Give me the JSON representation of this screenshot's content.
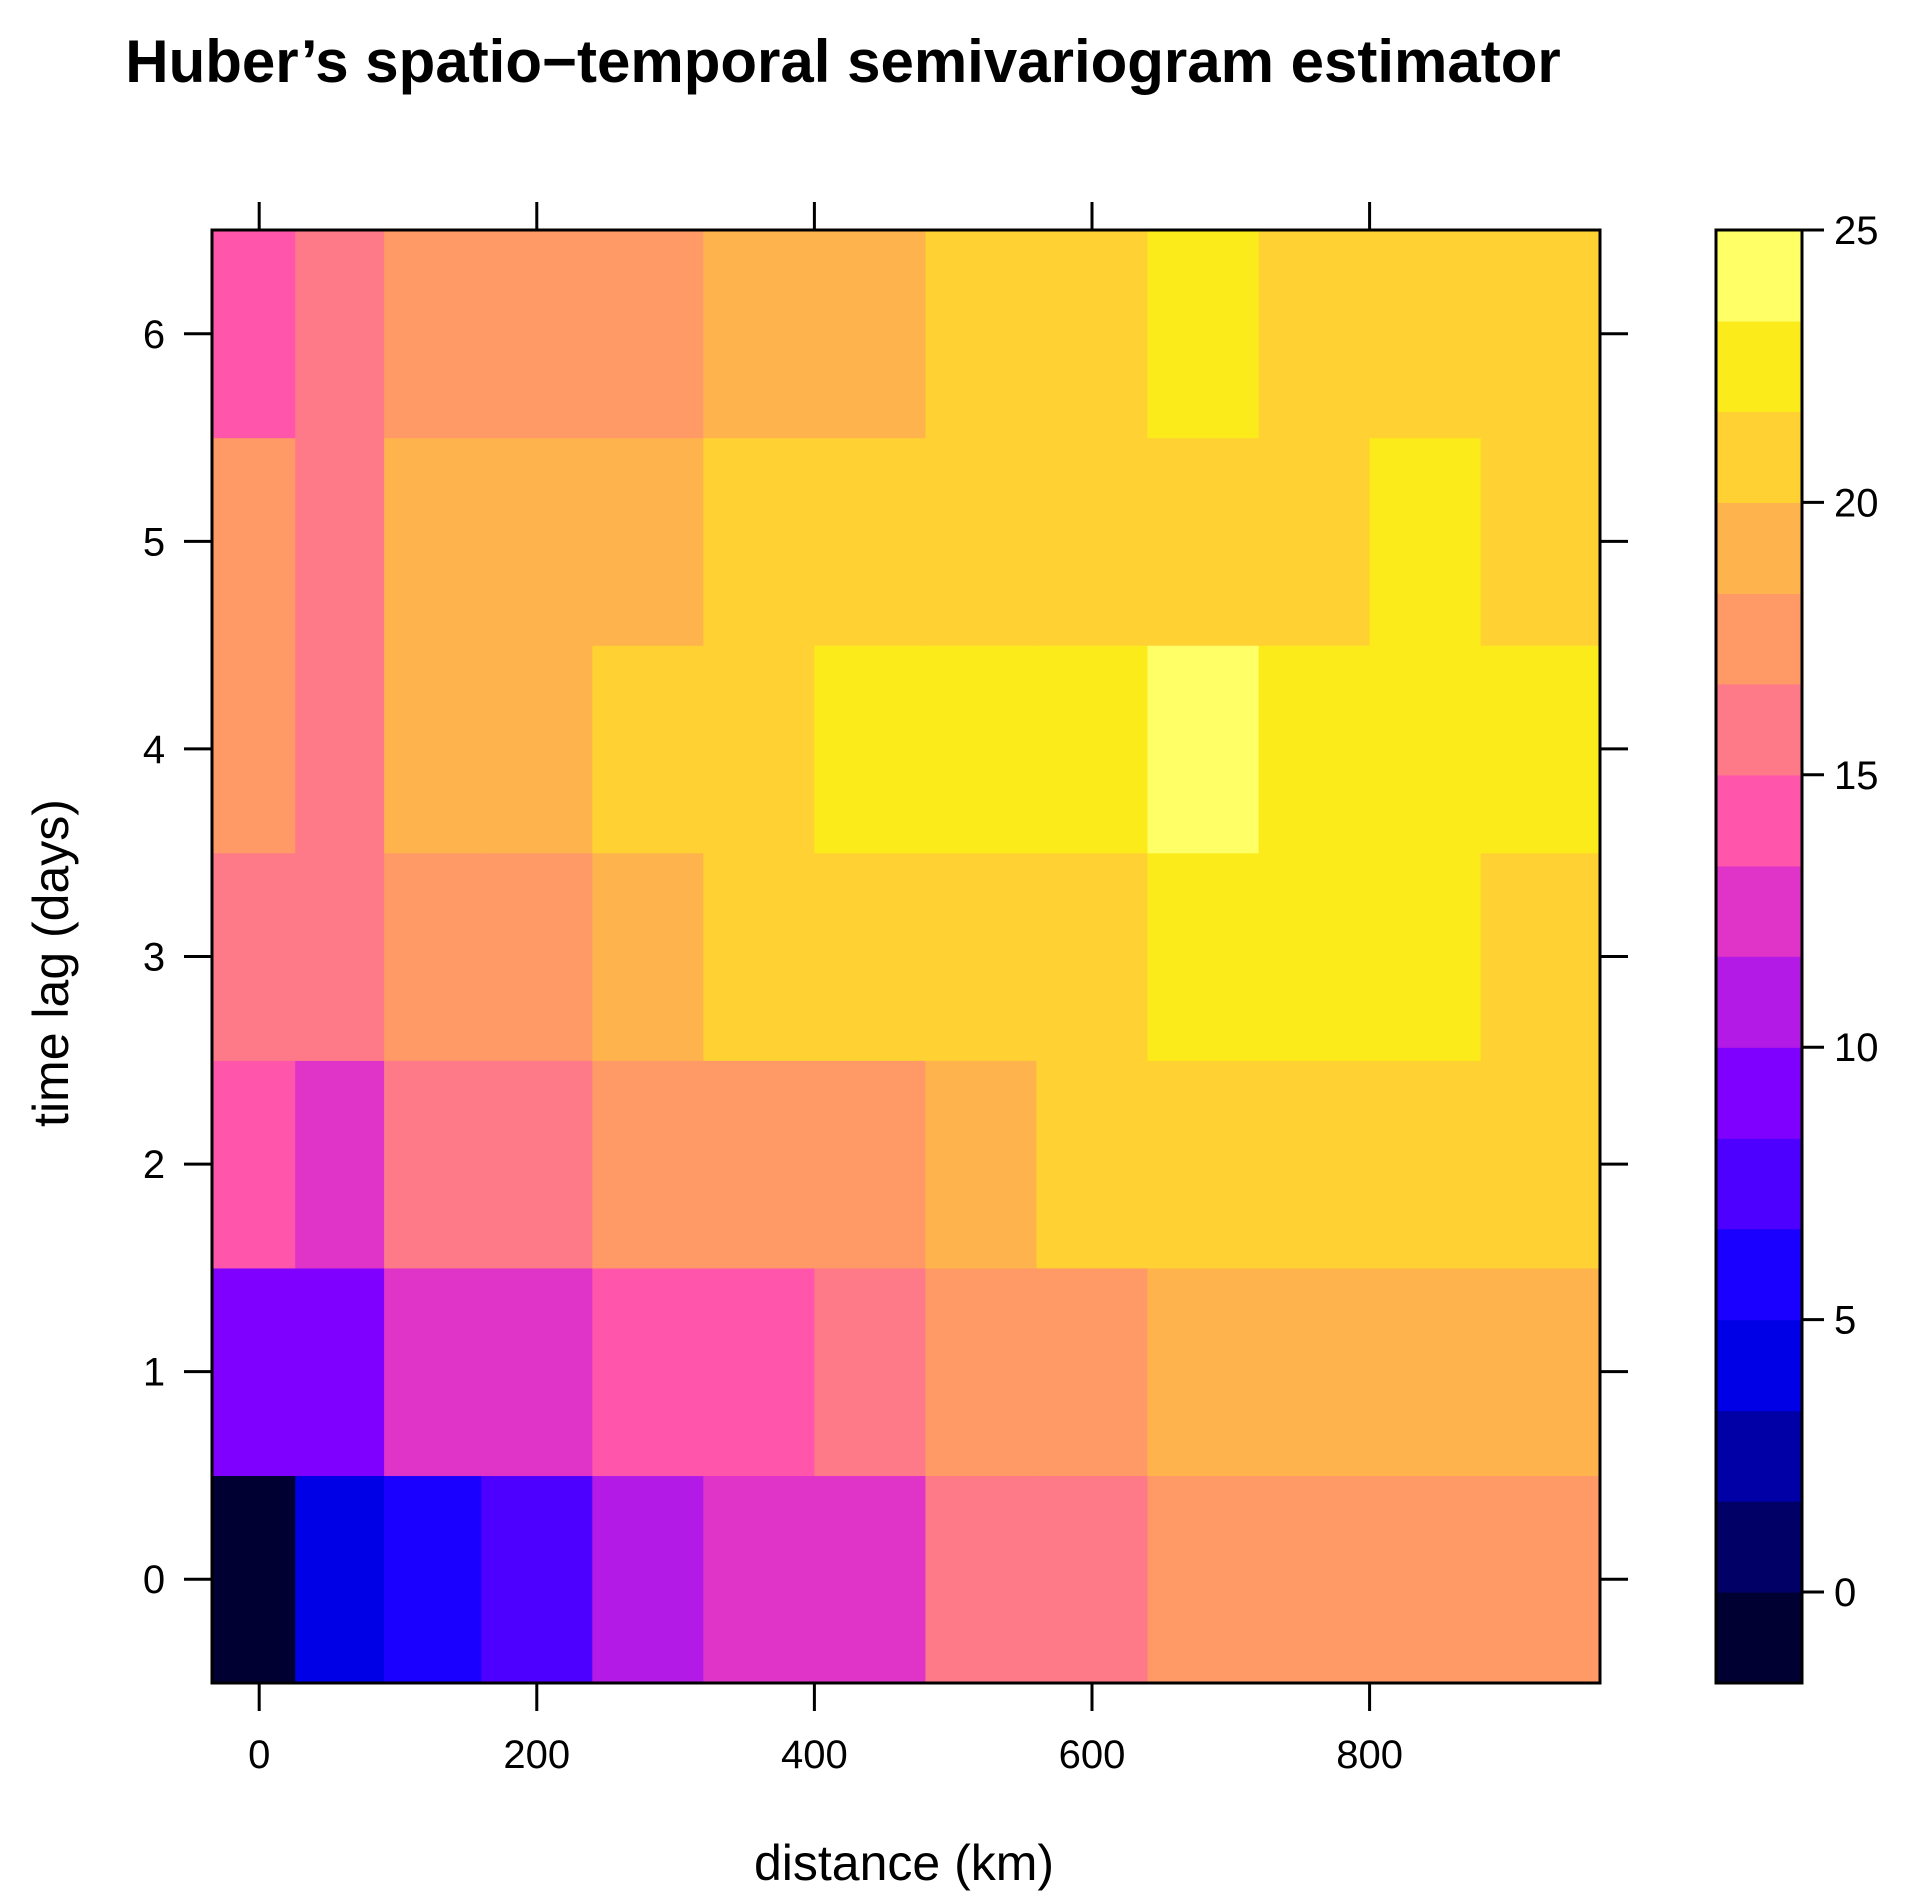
{
  "chart_data": {
    "type": "heatmap",
    "title": "Huber’s  spatio−temporal semivariogram estimator",
    "xlabel": "distance (km)",
    "ylabel": "time lag (days)",
    "xlim": [
      -34,
      966
    ],
    "ylim": [
      -0.5,
      6.5
    ],
    "x_ticks": [
      0,
      200,
      400,
      600,
      800
    ],
    "y_ticks": [
      0,
      1,
      2,
      3,
      4,
      5,
      6
    ],
    "x_bin_edges": [
      -34,
      26,
      90,
      160,
      240,
      320,
      400,
      480,
      560,
      640,
      720,
      800,
      880,
      966
    ],
    "y_values": [
      0,
      1,
      2,
      3,
      4,
      5,
      6
    ],
    "grid": false,
    "colorkey": {
      "position": "right",
      "breaks": [
        -1.67,
        0,
        1.67,
        3.33,
        5,
        6.67,
        8.33,
        10,
        11.67,
        13.33,
        15,
        16.67,
        18.33,
        20,
        21.67,
        23.33,
        25
      ],
      "colors": [
        "#000033",
        "#000066",
        "#0000a6",
        "#0000e6",
        "#1a00ff",
        "#4d00ff",
        "#8000ff",
        "#b31ae6",
        "#e033c7",
        "#ff55aa",
        "#ff7a88",
        "#ff9966",
        "#ffb34d",
        "#ffd133",
        "#fceb1a",
        "#ffff66"
      ],
      "ticks": [
        0,
        5,
        10,
        15,
        20,
        25
      ]
    },
    "z": [
      [
        -0.8,
        4.2,
        5.8,
        7.5,
        11,
        12.5,
        12.5,
        15.5,
        15.5,
        17.5,
        17.5,
        17.5,
        17.5
      ],
      [
        9.2,
        9.2,
        12.5,
        12.5,
        14,
        14,
        15.5,
        17.5,
        17.5,
        19,
        19,
        19,
        19
      ],
      [
        14,
        12.5,
        15.5,
        15.5,
        17.5,
        17.5,
        17.5,
        19,
        20.8,
        20.8,
        20.8,
        20.8,
        20.8
      ],
      [
        15.5,
        15.5,
        17.5,
        17.5,
        19,
        20.8,
        20.8,
        20.8,
        20.8,
        22.5,
        22.5,
        22.5,
        20.8
      ],
      [
        17.5,
        15.5,
        19,
        19,
        20.8,
        20.8,
        22.5,
        22.5,
        22.5,
        24.2,
        22.5,
        22.5,
        22.5
      ],
      [
        17.5,
        15.5,
        19,
        19,
        19,
        20.8,
        20.8,
        20.8,
        20.8,
        20.8,
        20.8,
        22.5,
        20.8
      ],
      [
        14,
        15.5,
        17.5,
        17.5,
        17.5,
        19,
        19,
        20.8,
        20.8,
        22.5,
        20.8,
        20.8,
        20.8
      ]
    ]
  }
}
